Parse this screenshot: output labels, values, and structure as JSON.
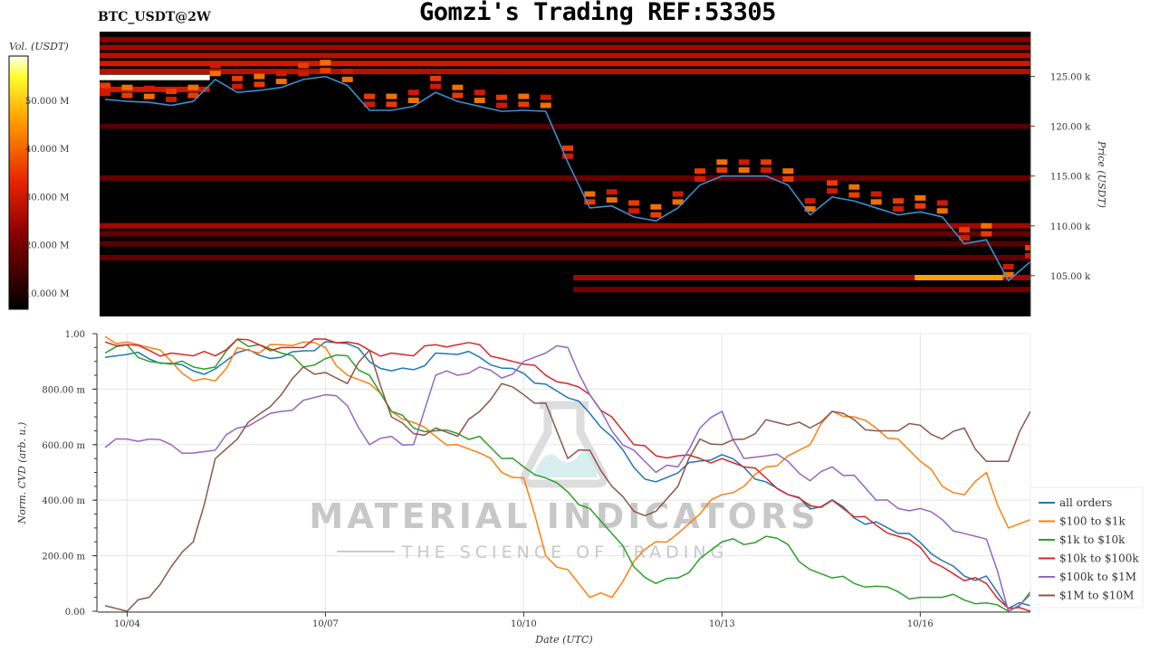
{
  "title": "Gomzi's Trading REF:53305",
  "subtitle": "BTC_USDT@2W",
  "watermark": {
    "line1": "MATERIAL INDICATORS",
    "line2": "THE SCIENCE OF TRADING"
  },
  "chart_data": [
    {
      "type": "heatmap",
      "colorbar": {
        "label": "Vol. (USDT)",
        "ticks": [
          "10.000 M",
          "20.000 M",
          "30.000 M",
          "40.000 M",
          "50.000 M"
        ],
        "tick_values": [
          10,
          20,
          30,
          40,
          50
        ],
        "range": [
          6.6,
          59.2
        ],
        "colormap": "hot"
      },
      "ylabel": "Price (USDT)",
      "yticks": [
        "105.00 k",
        "110.00 k",
        "115.00 k",
        "120.00 k",
        "125.00 k"
      ],
      "ytick_values": [
        105,
        110,
        115,
        120,
        125
      ],
      "ylim": [
        100.9,
        129.5
      ],
      "xlim": [
        "10/03 14:00",
        "10/17 16:00"
      ],
      "heatmap_bands": [
        {
          "price": 128.7,
          "intensity": 0.3
        },
        {
          "price": 127.9,
          "intensity": 0.35
        },
        {
          "price": 127.1,
          "intensity": 0.4
        },
        {
          "price": 126.3,
          "intensity": 0.45
        },
        {
          "price": 125.5,
          "intensity": 0.4
        },
        {
          "price": 124.9,
          "intensity": 1.0,
          "from": "10/03 14:00",
          "to": "10/05 06:00"
        },
        {
          "price": 123.7,
          "intensity": 0.45,
          "from": "10/03 14:00",
          "to": "10/05 06:00"
        },
        {
          "price": 120.0,
          "intensity": 0.18
        },
        {
          "price": 114.8,
          "intensity": 0.22
        },
        {
          "price": 110.0,
          "intensity": 0.35
        },
        {
          "price": 109.2,
          "intensity": 0.22
        },
        {
          "price": 108.2,
          "intensity": 0.2
        },
        {
          "price": 106.8,
          "intensity": 0.22
        },
        {
          "price": 104.8,
          "intensity": 0.35,
          "from": "10/10 18:00",
          "to": "10/17 16:00"
        },
        {
          "price": 104.8,
          "intensity": 0.75,
          "from": "10/15 22:00",
          "to": "10/17 06:00"
        },
        {
          "price": 103.6,
          "intensity": 0.25,
          "from": "10/10 18:00",
          "to": "10/17 16:00"
        }
      ],
      "price_series": {
        "x": [
          "10/03 16:00",
          "10/04 00:00",
          "10/04 08:00",
          "10/04 16:00",
          "10/05 00:00",
          "10/05 08:00",
          "10/05 16:00",
          "10/06 00:00",
          "10/06 08:00",
          "10/06 16:00",
          "10/07 00:00",
          "10/07 08:00",
          "10/07 16:00",
          "10/08 00:00",
          "10/08 08:00",
          "10/08 16:00",
          "10/09 00:00",
          "10/09 08:00",
          "10/09 16:00",
          "10/10 00:00",
          "10/10 08:00",
          "10/10 16:00",
          "10/11 00:00",
          "10/11 08:00",
          "10/11 16:00",
          "10/12 00:00",
          "10/12 08:00",
          "10/12 16:00",
          "10/13 00:00",
          "10/13 08:00",
          "10/13 16:00",
          "10/14 00:00",
          "10/14 08:00",
          "10/14 16:00",
          "10/15 00:00",
          "10/15 08:00",
          "10/15 16:00",
          "10/16 00:00",
          "10/16 08:00",
          "10/16 16:00",
          "10/17 00:00",
          "10/17 08:00",
          "10/17 16:00"
        ],
        "y": [
          122.7,
          122.5,
          122.4,
          122.1,
          122.5,
          124.7,
          123.4,
          123.6,
          123.9,
          124.7,
          125.0,
          124.1,
          121.6,
          121.6,
          122.0,
          123.4,
          122.5,
          122.0,
          121.5,
          121.6,
          121.5,
          116.4,
          111.8,
          112.0,
          110.9,
          110.5,
          111.8,
          114.1,
          115.0,
          115.0,
          115.0,
          114.1,
          111.1,
          112.9,
          112.5,
          111.8,
          111.1,
          111.4,
          110.9,
          108.2,
          108.6,
          104.5,
          106.4
        ]
      }
    },
    {
      "type": "line",
      "xlabel": "Date (UTC)",
      "ylabel": "Norm. CVD (arb. u.)",
      "ylim": [
        0,
        1
      ],
      "xlim": [
        "10/03 14:00",
        "10/17 16:00"
      ],
      "yticks": [
        "0.00",
        "200.00 m",
        "400.00 m",
        "600.00 m",
        "800.00 m",
        "1.00"
      ],
      "ytick_values": [
        0,
        0.2,
        0.4,
        0.6,
        0.8,
        1.0
      ],
      "xticks": [
        "10/04",
        "10/07",
        "10/10",
        "10/13",
        "10/16"
      ],
      "grid": true,
      "legend_position": "right",
      "x": [
        "10/03 16:00",
        "10/04 00:00",
        "10/04 08:00",
        "10/04 16:00",
        "10/05 00:00",
        "10/05 08:00",
        "10/05 16:00",
        "10/06 00:00",
        "10/06 08:00",
        "10/06 16:00",
        "10/07 00:00",
        "10/07 08:00",
        "10/07 16:00",
        "10/08 00:00",
        "10/08 08:00",
        "10/08 16:00",
        "10/09 00:00",
        "10/09 08:00",
        "10/09 16:00",
        "10/10 00:00",
        "10/10 08:00",
        "10/10 16:00",
        "10/11 00:00",
        "10/11 08:00",
        "10/11 16:00",
        "10/12 00:00",
        "10/12 08:00",
        "10/12 16:00",
        "10/13 00:00",
        "10/13 08:00",
        "10/13 16:00",
        "10/14 00:00",
        "10/14 08:00",
        "10/14 16:00",
        "10/15 00:00",
        "10/15 08:00",
        "10/15 16:00",
        "10/16 00:00",
        "10/16 08:00",
        "10/16 16:00",
        "10/17 00:00",
        "10/17 08:00",
        "10/17 16:00"
      ],
      "series": [
        {
          "name": "all orders",
          "color": "#1f77b4",
          "values": [
            0.915,
            0.925,
            0.909,
            0.893,
            0.866,
            0.873,
            0.932,
            0.922,
            0.915,
            0.938,
            0.971,
            0.964,
            0.899,
            0.866,
            0.87,
            0.93,
            0.925,
            0.915,
            0.876,
            0.857,
            0.818,
            0.769,
            0.713,
            0.629,
            0.518,
            0.466,
            0.498,
            0.541,
            0.564,
            0.518,
            0.466,
            0.42,
            0.368,
            0.401,
            0.336,
            0.322,
            0.28,
            0.248,
            0.182,
            0.127,
            0.127,
            0.01,
            0.02
          ]
        },
        {
          "name": "$100 to $1k",
          "color": "#ff7f0e",
          "values": [
            0.99,
            0.97,
            0.95,
            0.9,
            0.83,
            0.83,
            0.95,
            0.93,
            0.96,
            0.97,
            0.95,
            0.85,
            0.82,
            0.72,
            0.68,
            0.63,
            0.6,
            0.57,
            0.5,
            0.48,
            0.2,
            0.15,
            0.05,
            0.05,
            0.18,
            0.25,
            0.28,
            0.35,
            0.42,
            0.45,
            0.52,
            0.56,
            0.6,
            0.72,
            0.7,
            0.66,
            0.62,
            0.54,
            0.45,
            0.42,
            0.5,
            0.3,
            0.33
          ]
        },
        {
          "name": "$1k to $10k",
          "color": "#2ca02c",
          "values": [
            0.93,
            0.96,
            0.9,
            0.89,
            0.88,
            0.88,
            0.98,
            0.96,
            0.93,
            0.88,
            0.91,
            0.92,
            0.85,
            0.72,
            0.66,
            0.65,
            0.64,
            0.63,
            0.55,
            0.52,
            0.48,
            0.43,
            0.37,
            0.28,
            0.16,
            0.1,
            0.12,
            0.19,
            0.25,
            0.24,
            0.27,
            0.24,
            0.15,
            0.12,
            0.1,
            0.09,
            0.07,
            0.05,
            0.05,
            0.04,
            0.03,
            0.0,
            0.07
          ]
        },
        {
          "name": "$10k to $100k",
          "color": "#d62728",
          "values": [
            0.97,
            0.96,
            0.94,
            0.93,
            0.92,
            0.92,
            0.98,
            0.96,
            0.95,
            0.95,
            0.98,
            0.97,
            0.94,
            0.93,
            0.92,
            0.96,
            0.96,
            0.96,
            0.91,
            0.89,
            0.85,
            0.82,
            0.78,
            0.7,
            0.6,
            0.56,
            0.56,
            0.55,
            0.55,
            0.52,
            0.48,
            0.42,
            0.38,
            0.4,
            0.34,
            0.31,
            0.27,
            0.23,
            0.16,
            0.11,
            0.1,
            0.01,
            0.0
          ]
        },
        {
          "name": "$100k to $1M",
          "color": "#9467bd",
          "values": [
            0.59,
            0.62,
            0.62,
            0.6,
            0.57,
            0.58,
            0.66,
            0.69,
            0.72,
            0.76,
            0.78,
            0.74,
            0.6,
            0.63,
            0.6,
            0.85,
            0.85,
            0.88,
            0.84,
            0.9,
            0.93,
            0.95,
            0.78,
            0.65,
            0.58,
            0.5,
            0.52,
            0.66,
            0.72,
            0.55,
            0.56,
            0.54,
            0.47,
            0.52,
            0.49,
            0.4,
            0.37,
            0.37,
            0.33,
            0.28,
            0.26,
            0.0,
            0.06
          ]
        },
        {
          "name": "$1M to $10M",
          "color": "#8c564b",
          "values": [
            0.02,
            0.0,
            0.05,
            0.16,
            0.25,
            0.55,
            0.62,
            0.71,
            0.78,
            0.88,
            0.86,
            0.82,
            0.94,
            0.7,
            0.64,
            0.66,
            0.63,
            0.72,
            0.82,
            0.78,
            0.75,
            0.55,
            0.58,
            0.45,
            0.36,
            0.36,
            0.45,
            0.62,
            0.6,
            0.62,
            0.69,
            0.67,
            0.66,
            0.72,
            0.69,
            0.65,
            0.65,
            0.67,
            0.62,
            0.66,
            0.54,
            0.54,
            0.72
          ]
        }
      ]
    }
  ]
}
